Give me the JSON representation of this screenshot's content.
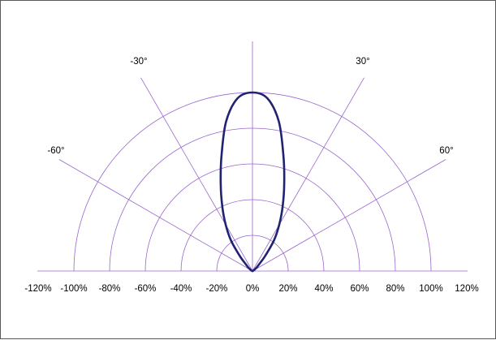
{
  "chart_data": {
    "type": "polar-line",
    "title": "",
    "angle_labels": [
      "-60°",
      "-30°",
      "30°",
      "60°"
    ],
    "angles_deg": [
      -60,
      -30,
      30,
      60
    ],
    "radial_ticks": [
      "-120%",
      "-100%",
      "-80%",
      "-60%",
      "-40%",
      "-20%",
      "0%",
      "20%",
      "40%",
      "60%",
      "80%",
      "100%",
      "120%"
    ],
    "radial_values": [
      -120,
      -100,
      -80,
      -60,
      -40,
      -20,
      0,
      20,
      40,
      60,
      80,
      100,
      120
    ],
    "rings_percent": [
      20,
      40,
      60,
      80,
      100
    ],
    "rlim": [
      0,
      120
    ],
    "grid": true,
    "colors": {
      "grid": "#9966cc",
      "curve": "#1f2370",
      "axis_labels": "#000000"
    },
    "series": [
      {
        "angles_deg": [
          -90,
          -75,
          -60,
          -50,
          -45,
          -40,
          -35,
          -30,
          -25,
          -20,
          -15,
          -10,
          -5,
          0,
          5,
          10,
          15,
          20,
          25,
          30,
          35,
          40,
          45,
          50,
          60,
          75,
          90
        ],
        "values_percent": [
          0,
          0,
          1,
          3,
          5,
          11,
          21,
          30,
          40,
          52,
          67,
          85,
          97,
          100,
          97,
          85,
          67,
          52,
          40,
          30,
          21,
          11,
          5,
          3,
          1,
          0,
          0
        ]
      }
    ]
  }
}
